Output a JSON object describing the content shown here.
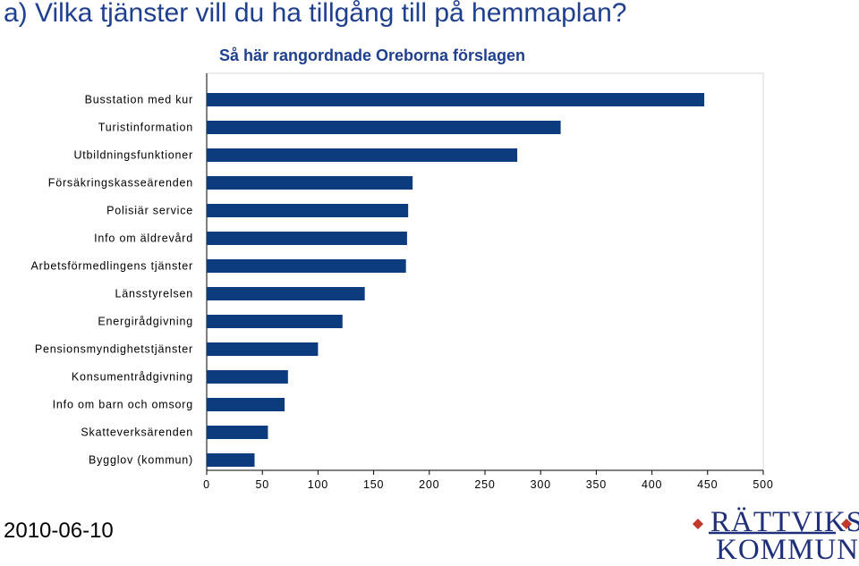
{
  "header": {
    "title": "a) Vilka tjänster vill du ha tillgång till på hemmaplan?"
  },
  "footer": {
    "date": "2010-06-10"
  },
  "logo": {
    "line1": "RÄTTVIKS",
    "line2": "KOMMUN"
  },
  "colors": {
    "bar": "#0c3c7d",
    "title": "#1f3f8f",
    "grid": "#d9d9d9",
    "logo": "#1f2f7a",
    "logo_accent": "#c0392b"
  },
  "chart_data": {
    "type": "bar",
    "orientation": "horizontal",
    "title": "Så här rangordnade Oreborna förslagen",
    "categories": [
      "Busstation med kur",
      "Turistinformation",
      "Utbildningsfunktioner",
      "Försäkringskasseärenden",
      "Polisiär service",
      "Info om äldrevård",
      "Arbetsförmedlingens tjänster",
      "Länsstyrelsen",
      "Energirådgivning",
      "Pensionsmyndighetstjänster",
      "Konsumentrådgivning",
      "Info om barn och omsorg",
      "Skatteverksärenden",
      "Bygglov (kommun)"
    ],
    "values": [
      447,
      318,
      279,
      185,
      181,
      180,
      179,
      142,
      122,
      100,
      73,
      70,
      55,
      43
    ],
    "xlim": [
      0,
      500
    ],
    "xticks": [
      "0",
      "50",
      "100",
      "150",
      "200",
      "250",
      "300",
      "350",
      "400",
      "450",
      "500"
    ],
    "grid": false,
    "legend": "none"
  }
}
